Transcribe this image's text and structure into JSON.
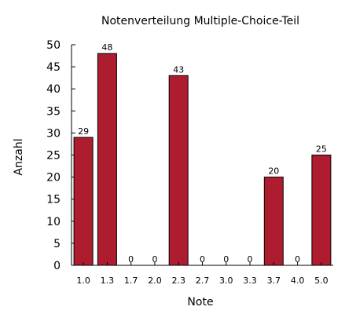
{
  "chart_data": {
    "type": "bar",
    "title": "Notenverteilung Multiple-Choice-Teil",
    "xlabel": "Note",
    "ylabel": "Anzahl",
    "categories": [
      "1.0",
      "1.3",
      "1.7",
      "2.0",
      "2.3",
      "2.7",
      "3.0",
      "3.3",
      "3.7",
      "4.0",
      "5.0"
    ],
    "values": [
      29,
      48,
      0,
      0,
      43,
      0,
      0,
      0,
      20,
      0,
      25
    ],
    "data_labels": [
      "29",
      "48",
      "0",
      "0",
      "43",
      "0",
      "0",
      "0",
      "20",
      "0",
      "25"
    ],
    "ylim": [
      0,
      50
    ],
    "yticks": [
      "0",
      "5",
      "10",
      "15",
      "20",
      "25",
      "30",
      "35",
      "40",
      "45",
      "50"
    ],
    "grid": false,
    "legend": "none",
    "bar_color": "#ae1c30",
    "edge_color": "#000000"
  }
}
